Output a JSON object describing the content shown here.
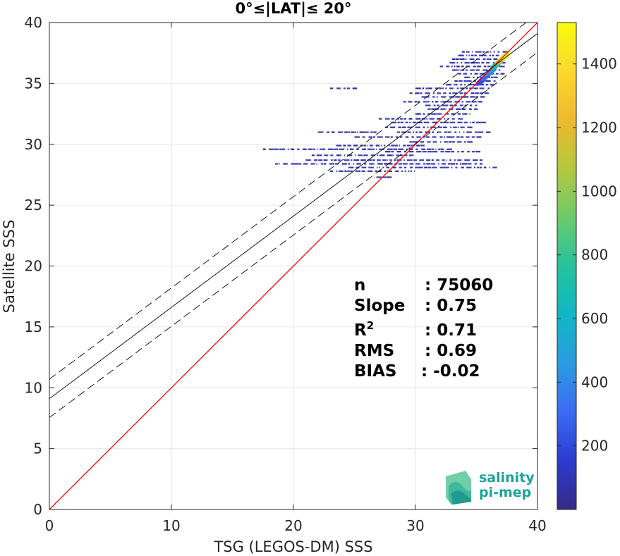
{
  "chart_data": {
    "type": "scatter",
    "subtype": "density-scatter",
    "title": "0°≤|LAT|≤ 20°",
    "xlabel": "TSG (LEGOS-DM) SSS",
    "ylabel": "Satellite SSS",
    "xlim": [
      0,
      40
    ],
    "ylim": [
      0,
      40
    ],
    "x_ticks": [
      0,
      10,
      20,
      30,
      40
    ],
    "y_ticks": [
      0,
      5,
      10,
      15,
      20,
      25,
      30,
      35,
      40
    ],
    "grid": true,
    "colorbar": {
      "colormap": "parula",
      "clim": [
        0,
        1530
      ],
      "ticks": [
        200,
        400,
        600,
        800,
        1000,
        1200,
        1400
      ],
      "colors": [
        "#352a87",
        "#2c3bd0",
        "#3b6bf5",
        "#2b9be0",
        "#0fb7c4",
        "#25c29c",
        "#6ccb6b",
        "#b4c73f",
        "#efb92e",
        "#fcd82d",
        "#f9fb0e"
      ]
    },
    "reference_lines": [
      {
        "name": "1:1",
        "color": "#ff0000",
        "style": "solid",
        "slope": 1.0,
        "intercept": 0.0
      },
      {
        "name": "fit",
        "color": "#000000",
        "style": "solid",
        "slope": 0.75,
        "intercept": 9.1
      },
      {
        "name": "fit+rms",
        "color": "#000000",
        "style": "dashed",
        "slope": 0.75,
        "intercept": 10.7
      },
      {
        "name": "fit-rms",
        "color": "#000000",
        "style": "dashed",
        "slope": 0.75,
        "intercept": 7.55
      }
    ],
    "density_core": [
      {
        "x": 37.3,
        "y": 37.2,
        "count": 1500
      },
      {
        "x": 37.0,
        "y": 36.9,
        "count": 1100
      },
      {
        "x": 36.6,
        "y": 36.5,
        "count": 700
      },
      {
        "x": 36.2,
        "y": 36.0,
        "count": 420
      },
      {
        "x": 35.8,
        "y": 35.6,
        "count": 300
      },
      {
        "x": 35.4,
        "y": 35.2,
        "count": 220
      }
    ],
    "scatter_rows": [
      {
        "x0": 33.8,
        "x1": 37.4,
        "y": 37.6
      },
      {
        "x0": 33.5,
        "x1": 37.4,
        "y": 37.3
      },
      {
        "x0": 33.0,
        "x1": 37.3,
        "y": 37.0
      },
      {
        "x0": 32.8,
        "x1": 37.3,
        "y": 36.7
      },
      {
        "x0": 32.0,
        "x1": 37.2,
        "y": 36.4
      },
      {
        "x0": 33.0,
        "x1": 37.0,
        "y": 36.1
      },
      {
        "x0": 33.5,
        "x1": 37.0,
        "y": 35.8
      },
      {
        "x0": 34.0,
        "x1": 36.8,
        "y": 35.5
      },
      {
        "x0": 33.2,
        "x1": 36.5,
        "y": 35.2
      },
      {
        "x0": 32.5,
        "x1": 36.5,
        "y": 34.9
      },
      {
        "x0": 23.0,
        "x1": 25.0,
        "y": 34.6
      },
      {
        "x0": 30.0,
        "x1": 36.2,
        "y": 34.6
      },
      {
        "x0": 29.5,
        "x1": 35.8,
        "y": 34.2
      },
      {
        "x0": 30.5,
        "x1": 35.8,
        "y": 33.9
      },
      {
        "x0": 29.0,
        "x1": 35.5,
        "y": 33.5
      },
      {
        "x0": 30.8,
        "x1": 35.2,
        "y": 33.2
      },
      {
        "x0": 31.0,
        "x1": 35.0,
        "y": 32.9
      },
      {
        "x0": 30.0,
        "x1": 34.5,
        "y": 32.5
      },
      {
        "x0": 27.0,
        "x1": 33.5,
        "y": 32.1
      },
      {
        "x0": 28.0,
        "x1": 35.5,
        "y": 31.8
      },
      {
        "x0": 27.5,
        "x1": 34.5,
        "y": 31.4
      },
      {
        "x0": 22.0,
        "x1": 27.0,
        "y": 31.0
      },
      {
        "x0": 28.5,
        "x1": 36.0,
        "y": 31.0
      },
      {
        "x0": 25.0,
        "x1": 35.0,
        "y": 30.6
      },
      {
        "x0": 29.5,
        "x1": 34.5,
        "y": 30.2
      },
      {
        "x0": 23.5,
        "x1": 30.5,
        "y": 29.9
      },
      {
        "x0": 17.5,
        "x1": 33.0,
        "y": 29.6
      },
      {
        "x0": 27.5,
        "x1": 35.5,
        "y": 29.4
      },
      {
        "x0": 21.5,
        "x1": 30.0,
        "y": 29.1
      },
      {
        "x0": 21.0,
        "x1": 35.5,
        "y": 28.7
      },
      {
        "x0": 18.5,
        "x1": 35.5,
        "y": 28.4
      },
      {
        "x0": 24.5,
        "x1": 36.5,
        "y": 28.1
      },
      {
        "x0": 23.0,
        "x1": 30.0,
        "y": 27.8
      },
      {
        "x0": 26.8,
        "x1": 28.3,
        "y": 27.3
      }
    ],
    "stats": [
      {
        "label": "n",
        "value": ": 75060"
      },
      {
        "label": "Slope",
        "value": ": 0.75"
      },
      {
        "label": "R",
        "label_sup": "2",
        "value": ": 0.71"
      },
      {
        "label": "RMS",
        "value": ": 0.69"
      },
      {
        "label": "BIAS",
        "value": ": -0.02"
      }
    ],
    "logo": {
      "line1": "salinity",
      "line2": "pi-mep",
      "color": "#1aa49a"
    }
  }
}
